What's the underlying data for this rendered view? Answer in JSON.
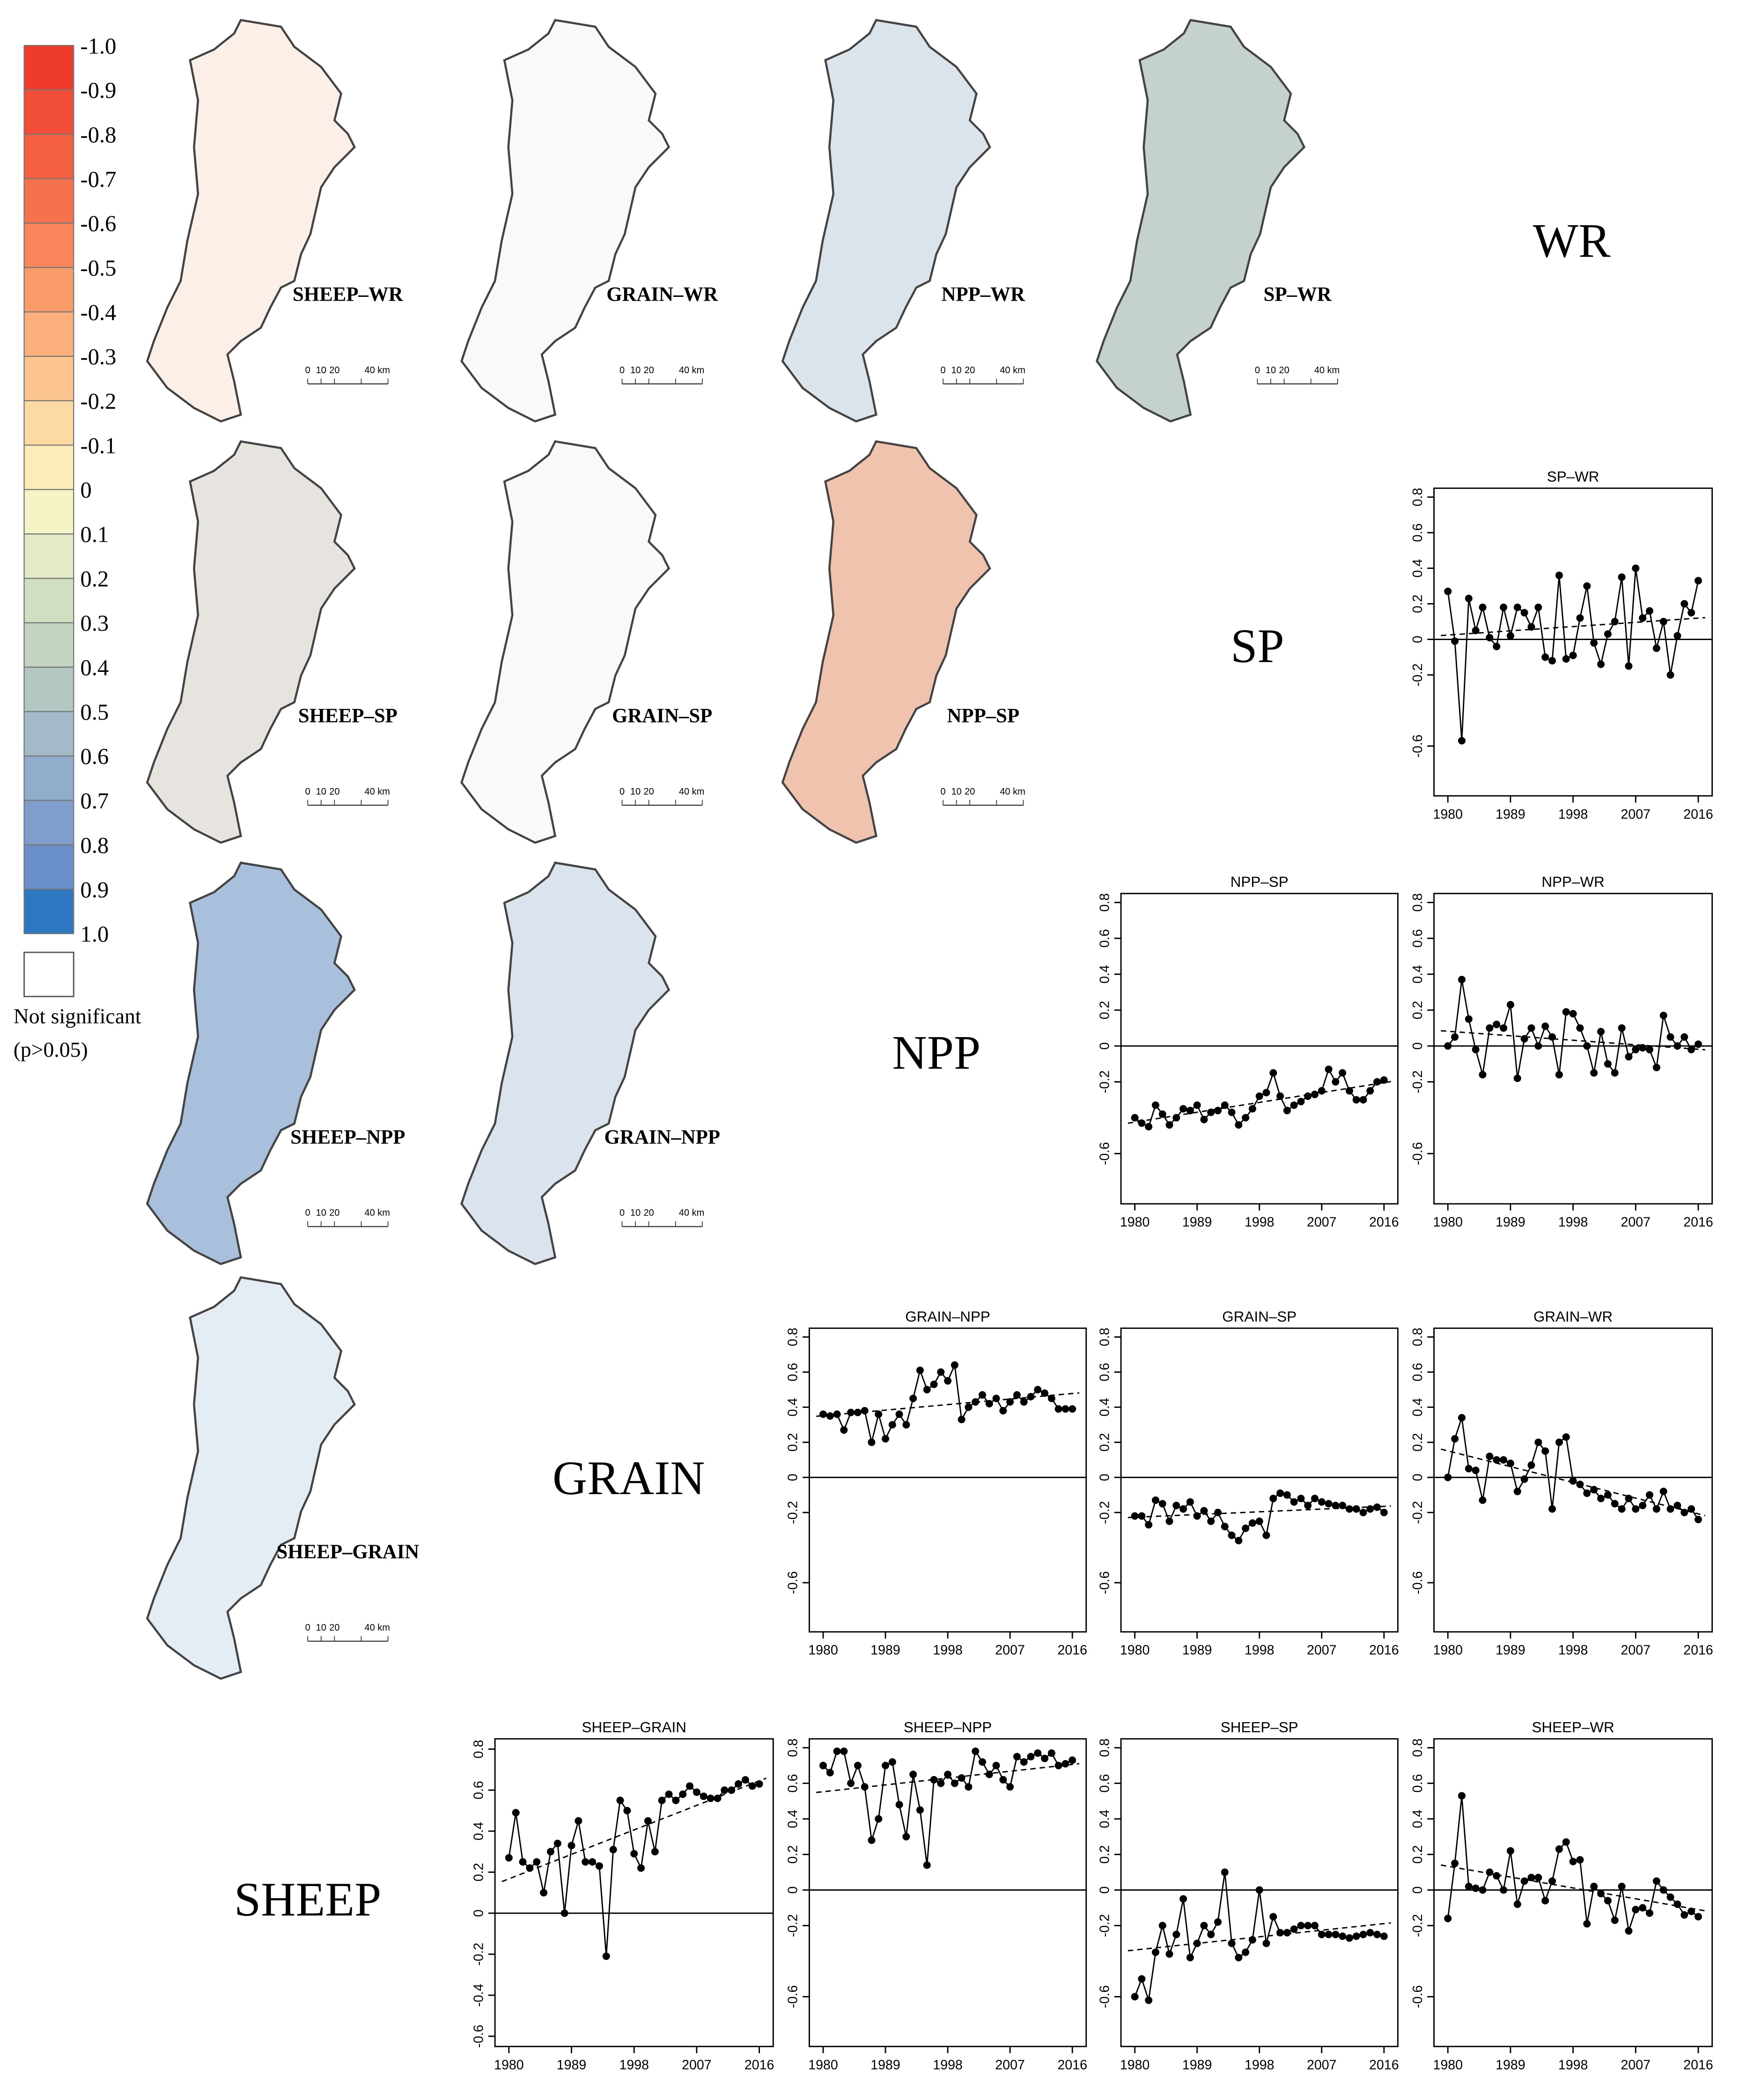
{
  "legend": {
    "labels": [
      "-1.0",
      "-0.9",
      "-0.8",
      "-0.7",
      "-0.6",
      "-0.5",
      "-0.4",
      "-0.3",
      "-0.2",
      "-0.1",
      "0",
      "0.1",
      "0.2",
      "0.3",
      "0.4",
      "0.5",
      "0.6",
      "0.7",
      "0.8",
      "0.9",
      "1.0"
    ],
    "colors": [
      "#ef3b2c",
      "#f24d37",
      "#f45f42",
      "#f6724e",
      "#f8865a",
      "#f99a69",
      "#fbaf7b",
      "#fcc48e",
      "#fdd9a3",
      "#fdecb7",
      "#f4f4c6",
      "#e2ebc6",
      "#d0dfc0",
      "#c2d3c0",
      "#b3c7c2",
      "#a3bbc8",
      "#92adcb",
      "#7f9ecb",
      "#6a8fca",
      "#2e78c2"
    ],
    "not_significant": [
      "Not significant",
      "(p>0.05)"
    ]
  },
  "maps": [
    {
      "label": "SHEEP–WR"
    },
    {
      "label": "GRAIN–WR"
    },
    {
      "label": "NPP–WR"
    },
    {
      "label": "SP–WR"
    },
    {
      "label": "SHEEP–SP"
    },
    {
      "label": "GRAIN–SP"
    },
    {
      "label": "NPP–SP"
    },
    {
      "label": "SHEEP–NPP"
    },
    {
      "label": "GRAIN–NPP"
    },
    {
      "label": "SHEEP–GRAIN"
    }
  ],
  "scale_labels": [
    "0",
    "10",
    "20",
    "40 km"
  ],
  "diagonal_labels": [
    "WR",
    "SP",
    "NPP",
    "GRAIN",
    "SHEEP"
  ],
  "chart_data": [
    {
      "type": "line",
      "title": "SP–WR",
      "color": "#000000",
      "trend_line": true,
      "hline": 0,
      "xlim": [
        1978,
        2018
      ],
      "xticks": [
        1980,
        1989,
        1998,
        2007,
        2016
      ],
      "ylim": [
        -0.88,
        0.85
      ],
      "yticks": [
        -0.6,
        -0.2,
        0,
        0.2,
        0.4,
        0.6,
        0.8
      ],
      "x": [
        1980,
        1981,
        1982,
        1983,
        1984,
        1985,
        1986,
        1987,
        1988,
        1989,
        1990,
        1991,
        1992,
        1993,
        1994,
        1995,
        1996,
        1997,
        1998,
        1999,
        2000,
        2001,
        2002,
        2003,
        2004,
        2005,
        2006,
        2007,
        2008,
        2009,
        2010,
        2011,
        2012,
        2013,
        2014,
        2015,
        2016
      ],
      "values": [
        0.27,
        -0.01,
        -0.57,
        0.23,
        0.05,
        0.18,
        0.01,
        -0.04,
        0.18,
        0.02,
        0.18,
        0.15,
        0.07,
        0.18,
        -0.1,
        -0.12,
        0.36,
        -0.11,
        -0.09,
        0.12,
        0.3,
        -0.02,
        -0.14,
        0.03,
        0.1,
        0.35,
        -0.15,
        0.4,
        0.12,
        0.16,
        -0.05,
        0.1,
        -0.2,
        0.02,
        0.2,
        0.15,
        0.33
      ]
    },
    {
      "type": "line",
      "title": "NPP–SP",
      "color": "#000000",
      "trend_line": true,
      "hline": 0,
      "xlim": [
        1978,
        2018
      ],
      "xticks": [
        1980,
        1989,
        1998,
        2007,
        2016
      ],
      "ylim": [
        -0.88,
        0.85
      ],
      "yticks": [
        -0.6,
        -0.2,
        0,
        0.2,
        0.4,
        0.6,
        0.8
      ],
      "x": [
        1980,
        1981,
        1982,
        1983,
        1984,
        1985,
        1986,
        1987,
        1988,
        1989,
        1990,
        1991,
        1992,
        1993,
        1994,
        1995,
        1996,
        1997,
        1998,
        1999,
        2000,
        2001,
        2002,
        2003,
        2004,
        2005,
        2006,
        2007,
        2008,
        2009,
        2010,
        2011,
        2012,
        2013,
        2014,
        2015,
        2016
      ],
      "values": [
        -0.4,
        -0.43,
        -0.45,
        -0.33,
        -0.38,
        -0.44,
        -0.4,
        -0.35,
        -0.36,
        -0.33,
        -0.41,
        -0.37,
        -0.36,
        -0.33,
        -0.37,
        -0.44,
        -0.4,
        -0.35,
        -0.28,
        -0.26,
        -0.15,
        -0.28,
        -0.36,
        -0.33,
        -0.31,
        -0.28,
        -0.27,
        -0.25,
        -0.13,
        -0.2,
        -0.15,
        -0.25,
        -0.3,
        -0.3,
        -0.25,
        -0.2,
        -0.19
      ]
    },
    {
      "type": "line",
      "title": "NPP–WR",
      "color": "#000000",
      "trend_line": true,
      "hline": 0,
      "xlim": [
        1978,
        2018
      ],
      "xticks": [
        1980,
        1989,
        1998,
        2007,
        2016
      ],
      "ylim": [
        -0.88,
        0.85
      ],
      "yticks": [
        -0.6,
        -0.2,
        0,
        0.2,
        0.4,
        0.6,
        0.8
      ],
      "x": [
        1980,
        1981,
        1982,
        1983,
        1984,
        1985,
        1986,
        1987,
        1988,
        1989,
        1990,
        1991,
        1992,
        1993,
        1994,
        1995,
        1996,
        1997,
        1998,
        1999,
        2000,
        2001,
        2002,
        2003,
        2004,
        2005,
        2006,
        2007,
        2008,
        2009,
        2010,
        2011,
        2012,
        2013,
        2014,
        2015,
        2016
      ],
      "values": [
        0,
        0.05,
        0.37,
        0.15,
        -0.02,
        -0.16,
        0.1,
        0.12,
        0.1,
        0.23,
        -0.18,
        0.04,
        0.1,
        0,
        0.11,
        0.05,
        -0.16,
        0.19,
        0.18,
        0.1,
        0,
        -0.15,
        0.08,
        -0.1,
        -0.15,
        0.1,
        -0.06,
        -0.02,
        -0.01,
        -0.02,
        -0.12,
        0.17,
        0.05,
        0,
        0.05,
        -0.02,
        0.01
      ]
    },
    {
      "type": "line",
      "title": "GRAIN–NPP",
      "color": "#000000",
      "trend_line": true,
      "hline": 0,
      "xlim": [
        1978,
        2018
      ],
      "xticks": [
        1980,
        1989,
        1998,
        2007,
        2016
      ],
      "ylim": [
        -0.88,
        0.85
      ],
      "yticks": [
        -0.6,
        -0.2,
        0,
        0.2,
        0.4,
        0.6,
        0.8
      ],
      "x": [
        1980,
        1981,
        1982,
        1983,
        1984,
        1985,
        1986,
        1987,
        1988,
        1989,
        1990,
        1991,
        1992,
        1993,
        1994,
        1995,
        1996,
        1997,
        1998,
        1999,
        2000,
        2001,
        2002,
        2003,
        2004,
        2005,
        2006,
        2007,
        2008,
        2009,
        2010,
        2011,
        2012,
        2013,
        2014,
        2015,
        2016
      ],
      "values": [
        0.36,
        0.35,
        0.36,
        0.27,
        0.37,
        0.37,
        0.38,
        0.2,
        0.36,
        0.22,
        0.3,
        0.36,
        0.3,
        0.45,
        0.61,
        0.5,
        0.53,
        0.6,
        0.55,
        0.64,
        0.33,
        0.4,
        0.43,
        0.47,
        0.42,
        0.45,
        0.38,
        0.43,
        0.47,
        0.43,
        0.46,
        0.5,
        0.48,
        0.45,
        0.39,
        0.39,
        0.39
      ]
    },
    {
      "type": "line",
      "title": "GRAIN–SP",
      "color": "#000000",
      "trend_line": true,
      "hline": 0,
      "xlim": [
        1978,
        2018
      ],
      "xticks": [
        1980,
        1989,
        1998,
        2007,
        2016
      ],
      "ylim": [
        -0.88,
        0.85
      ],
      "yticks": [
        -0.6,
        -0.2,
        0,
        0.2,
        0.4,
        0.6,
        0.8
      ],
      "x": [
        1980,
        1981,
        1982,
        1983,
        1984,
        1985,
        1986,
        1987,
        1988,
        1989,
        1990,
        1991,
        1992,
        1993,
        1994,
        1995,
        1996,
        1997,
        1998,
        1999,
        2000,
        2001,
        2002,
        2003,
        2004,
        2005,
        2006,
        2007,
        2008,
        2009,
        2010,
        2011,
        2012,
        2013,
        2014,
        2015,
        2016
      ],
      "values": [
        -0.22,
        -0.22,
        -0.27,
        -0.13,
        -0.15,
        -0.25,
        -0.16,
        -0.18,
        -0.14,
        -0.22,
        -0.19,
        -0.25,
        -0.2,
        -0.28,
        -0.33,
        -0.36,
        -0.29,
        -0.26,
        -0.25,
        -0.33,
        -0.12,
        -0.09,
        -0.1,
        -0.14,
        -0.12,
        -0.16,
        -0.12,
        -0.14,
        -0.15,
        -0.16,
        -0.16,
        -0.18,
        -0.18,
        -0.2,
        -0.18,
        -0.17,
        -0.2
      ]
    },
    {
      "type": "line",
      "title": "GRAIN–WR",
      "color": "#000000",
      "trend_line": true,
      "hline": 0,
      "xlim": [
        1978,
        2018
      ],
      "xticks": [
        1980,
        1989,
        1998,
        2007,
        2016
      ],
      "ylim": [
        -0.88,
        0.85
      ],
      "yticks": [
        -0.6,
        -0.2,
        0,
        0.2,
        0.4,
        0.6,
        0.8
      ],
      "x": [
        1980,
        1981,
        1982,
        1983,
        1984,
        1985,
        1986,
        1987,
        1988,
        1989,
        1990,
        1991,
        1992,
        1993,
        1994,
        1995,
        1996,
        1997,
        1998,
        1999,
        2000,
        2001,
        2002,
        2003,
        2004,
        2005,
        2006,
        2007,
        2008,
        2009,
        2010,
        2011,
        2012,
        2013,
        2014,
        2015,
        2016
      ],
      "values": [
        0,
        0.22,
        0.34,
        0.05,
        0.04,
        -0.13,
        0.12,
        0.1,
        0.1,
        0.08,
        -0.08,
        -0.01,
        0.07,
        0.2,
        0.15,
        -0.18,
        0.2,
        0.23,
        -0.02,
        -0.04,
        -0.09,
        -0.07,
        -0.12,
        -0.1,
        -0.15,
        -0.18,
        -0.12,
        -0.18,
        -0.16,
        -0.1,
        -0.18,
        -0.08,
        -0.18,
        -0.16,
        -0.2,
        -0.18,
        -0.24
      ]
    },
    {
      "type": "line",
      "title": "SHEEP–GRAIN",
      "color": "#000000",
      "trend_line": true,
      "hline": 0,
      "xlim": [
        1978,
        2018
      ],
      "xticks": [
        1980,
        1989,
        1998,
        2007,
        2016
      ],
      "ylim": [
        -0.65,
        0.85
      ],
      "yticks": [
        -0.6,
        -0.4,
        -0.2,
        0,
        0.2,
        0.4,
        0.6,
        0.8
      ],
      "x": [
        1980,
        1981,
        1982,
        1983,
        1984,
        1985,
        1986,
        1987,
        1988,
        1989,
        1990,
        1991,
        1992,
        1993,
        1994,
        1995,
        1996,
        1997,
        1998,
        1999,
        2000,
        2001,
        2002,
        2003,
        2004,
        2005,
        2006,
        2007,
        2008,
        2009,
        2010,
        2011,
        2012,
        2013,
        2014,
        2015,
        2016
      ],
      "values": [
        0.27,
        0.49,
        0.25,
        0.22,
        0.25,
        0.1,
        0.3,
        0.34,
        0,
        0.33,
        0.45,
        0.25,
        0.25,
        0.23,
        -0.21,
        0.31,
        0.55,
        0.5,
        0.29,
        0.22,
        0.45,
        0.3,
        0.55,
        0.58,
        0.55,
        0.58,
        0.62,
        0.59,
        0.57,
        0.56,
        0.56,
        0.6,
        0.6,
        0.63,
        0.65,
        0.62,
        0.63
      ]
    },
    {
      "type": "line",
      "title": "SHEEP–NPP",
      "color": "#000000",
      "trend_line": true,
      "hline": 0,
      "xlim": [
        1978,
        2018
      ],
      "xticks": [
        1980,
        1989,
        1998,
        2007,
        2016
      ],
      "ylim": [
        -0.88,
        0.85
      ],
      "yticks": [
        -0.6,
        -0.2,
        0,
        0.2,
        0.4,
        0.6,
        0.8
      ],
      "x": [
        1980,
        1981,
        1982,
        1983,
        1984,
        1985,
        1986,
        1987,
        1988,
        1989,
        1990,
        1991,
        1992,
        1993,
        1994,
        1995,
        1996,
        1997,
        1998,
        1999,
        2000,
        2001,
        2002,
        2003,
        2004,
        2005,
        2006,
        2007,
        2008,
        2009,
        2010,
        2011,
        2012,
        2013,
        2014,
        2015,
        2016
      ],
      "values": [
        0.7,
        0.66,
        0.78,
        0.78,
        0.6,
        0.7,
        0.58,
        0.28,
        0.4,
        0.7,
        0.72,
        0.48,
        0.3,
        0.65,
        0.45,
        0.14,
        0.62,
        0.6,
        0.65,
        0.6,
        0.63,
        0.58,
        0.78,
        0.72,
        0.65,
        0.7,
        0.62,
        0.58,
        0.75,
        0.72,
        0.75,
        0.77,
        0.74,
        0.77,
        0.7,
        0.71,
        0.73
      ]
    },
    {
      "type": "line",
      "title": "SHEEP–SP",
      "color": "#000000",
      "trend_line": true,
      "hline": 0,
      "xlim": [
        1978,
        2018
      ],
      "xticks": [
        1980,
        1989,
        1998,
        2007,
        2016
      ],
      "ylim": [
        -0.88,
        0.85
      ],
      "yticks": [
        -0.6,
        -0.2,
        0,
        0.2,
        0.4,
        0.6,
        0.8
      ],
      "x": [
        1980,
        1981,
        1982,
        1983,
        1984,
        1985,
        1986,
        1987,
        1988,
        1989,
        1990,
        1991,
        1992,
        1993,
        1994,
        1995,
        1996,
        1997,
        1998,
        1999,
        2000,
        2001,
        2002,
        2003,
        2004,
        2005,
        2006,
        2007,
        2008,
        2009,
        2010,
        2011,
        2012,
        2013,
        2014,
        2015,
        2016
      ],
      "values": [
        -0.6,
        -0.5,
        -0.62,
        -0.35,
        -0.2,
        -0.36,
        -0.25,
        -0.05,
        -0.38,
        -0.3,
        -0.2,
        -0.25,
        -0.18,
        0.1,
        -0.3,
        -0.38,
        -0.35,
        -0.28,
        0,
        -0.3,
        -0.15,
        -0.24,
        -0.24,
        -0.22,
        -0.2,
        -0.2,
        -0.2,
        -0.25,
        -0.25,
        -0.25,
        -0.26,
        -0.27,
        -0.26,
        -0.25,
        -0.24,
        -0.25,
        -0.26
      ]
    },
    {
      "type": "line",
      "title": "SHEEP–WR",
      "color": "#000000",
      "trend_line": true,
      "hline": 0,
      "xlim": [
        1978,
        2018
      ],
      "xticks": [
        1980,
        1989,
        1998,
        2007,
        2016
      ],
      "ylim": [
        -0.88,
        0.85
      ],
      "yticks": [
        -0.6,
        -0.2,
        0,
        0.2,
        0.4,
        0.6,
        0.8
      ],
      "x": [
        1980,
        1981,
        1982,
        1983,
        1984,
        1985,
        1986,
        1987,
        1988,
        1989,
        1990,
        1991,
        1992,
        1993,
        1994,
        1995,
        1996,
        1997,
        1998,
        1999,
        2000,
        2001,
        2002,
        2003,
        2004,
        2005,
        2006,
        2007,
        2008,
        2009,
        2010,
        2011,
        2012,
        2013,
        2014,
        2015,
        2016
      ],
      "values": [
        -0.16,
        0.15,
        0.53,
        0.02,
        0.01,
        0,
        0.1,
        0.08,
        0,
        0.22,
        -0.08,
        0.05,
        0.07,
        0.07,
        -0.06,
        0.05,
        0.23,
        0.27,
        0.16,
        0.17,
        -0.19,
        0.02,
        -0.02,
        -0.06,
        -0.17,
        0.02,
        -0.23,
        -0.11,
        -0.1,
        -0.13,
        0.05,
        0,
        -0.04,
        -0.08,
        -0.14,
        -0.12,
        -0.15
      ]
    }
  ]
}
